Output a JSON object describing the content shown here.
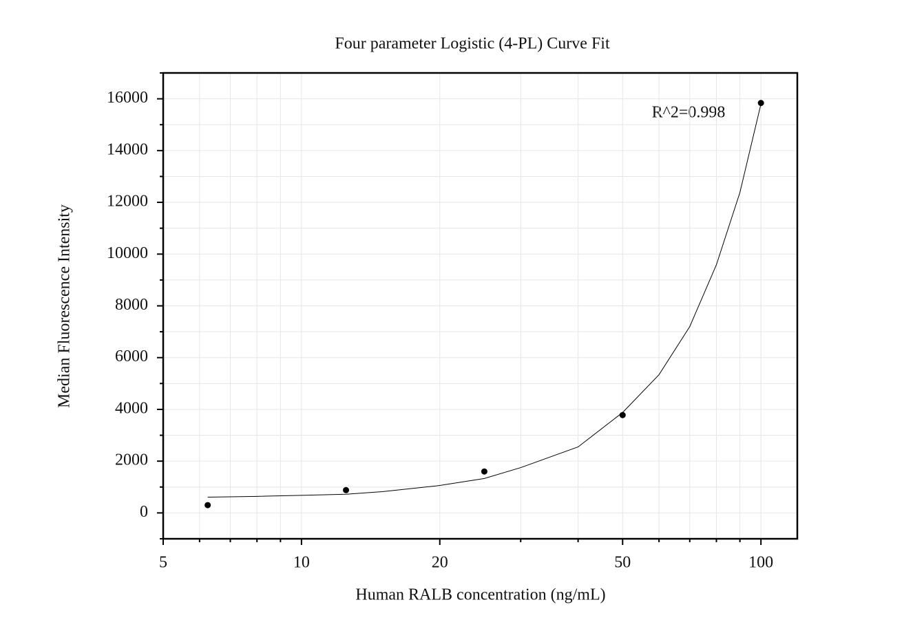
{
  "chart_data": {
    "type": "scatter",
    "title": "Four parameter Logistic (4-PL) Curve Fit",
    "x_label": "Human RALB concentration (ng/mL)",
    "y_label": "Median Fluorescence Intensity",
    "annotation": "R^2=0.998",
    "x_scale": "log",
    "grid": true,
    "xlim": [
      5,
      120
    ],
    "xticks": [
      5,
      10,
      20,
      50,
      100
    ],
    "xminor_ticks": [
      6,
      7,
      8,
      9,
      30,
      40,
      60,
      70,
      80,
      90
    ],
    "ylim": [
      -1000,
      17000
    ],
    "yticks": [
      0,
      2000,
      4000,
      6000,
      8000,
      10000,
      12000,
      14000,
      16000
    ],
    "yminor_ticks": [
      -1000,
      1000,
      3000,
      5000,
      7000,
      9000,
      11000,
      13000,
      15000,
      17000
    ],
    "points": {
      "color": "#000000",
      "x": [
        6.25,
        12.5,
        25,
        50,
        100
      ],
      "values": [
        300,
        880,
        1600,
        3780,
        15840
      ]
    },
    "fit": {
      "color": "#000000",
      "x": [
        6.25,
        8,
        10,
        12.5,
        15,
        20,
        25,
        30,
        40,
        50,
        60,
        70,
        80,
        90,
        100
      ],
      "values": [
        610,
        640,
        680,
        720,
        820,
        1060,
        1330,
        1750,
        2550,
        3880,
        5340,
        7200,
        9590,
        12380,
        15800
      ]
    }
  }
}
